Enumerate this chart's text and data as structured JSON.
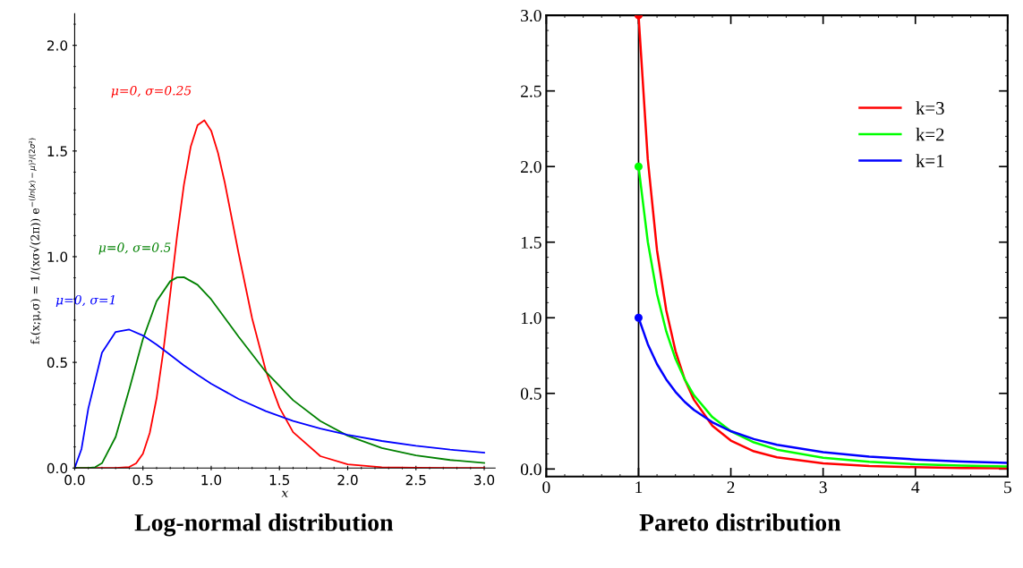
{
  "chart_data": [
    {
      "type": "line",
      "title": "Log-normal distribution",
      "xlabel": "x",
      "ylabel": "fₓ(x;μ,σ) = 1/(xσ√(2π)) e$^{−(ln(x)−μ)²/(2σ²)}$",
      "xlim": [
        0,
        3.08
      ],
      "ylim": [
        0,
        2.15
      ],
      "xticks": [
        {
          "value": 0,
          "label": "0.0"
        },
        0.5,
        {
          "value": 1,
          "label": "1.0"
        },
        1.5,
        {
          "value": 2,
          "label": "2.0"
        },
        2.5,
        {
          "value": 3,
          "label": "3.0"
        }
      ],
      "yticks": [
        {
          "value": 0,
          "label": "0.0"
        },
        0.5,
        {
          "value": 1,
          "label": "1.0"
        },
        1.5,
        {
          "value": 2,
          "label": "2.0"
        }
      ],
      "grid": false,
      "legend": false,
      "series": [
        {
          "name": "μ=0, σ=0.25",
          "color": "#ff0000",
          "x": [
            0,
            0.3,
            0.4,
            0.45,
            0.5,
            0.55,
            0.6,
            0.65,
            0.7,
            0.75,
            0.8,
            0.85,
            0.9,
            0.95,
            1.0,
            1.05,
            1.1,
            1.2,
            1.3,
            1.4,
            1.5,
            1.6,
            1.8,
            2.0,
            2.25,
            2.5,
            3.0
          ],
          "values": [
            0,
            0,
            0.005,
            0.022,
            0.068,
            0.166,
            0.33,
            0.556,
            0.824,
            1.098,
            1.339,
            1.52,
            1.622,
            1.645,
            1.596,
            1.491,
            1.349,
            1.019,
            0.708,
            0.461,
            0.286,
            0.17,
            0.056,
            0.017,
            0.004,
            0.001,
            0
          ]
        },
        {
          "name": "μ=0, σ=0.5",
          "color": "#008000",
          "x": [
            0,
            0.1,
            0.15,
            0.2,
            0.3,
            0.4,
            0.5,
            0.6,
            0.7,
            0.75,
            0.8,
            0.9,
            1.0,
            1.2,
            1.4,
            1.6,
            1.8,
            2.0,
            2.25,
            2.5,
            2.75,
            3.0
          ],
          "values": [
            0,
            0,
            0.004,
            0.023,
            0.147,
            0.372,
            0.61,
            0.789,
            0.884,
            0.902,
            0.903,
            0.867,
            0.798,
            0.622,
            0.455,
            0.321,
            0.222,
            0.153,
            0.095,
            0.06,
            0.038,
            0.024
          ]
        },
        {
          "name": "μ=0, σ=1",
          "color": "#0000ff",
          "x": [
            0,
            0.05,
            0.1,
            0.2,
            0.3,
            0.4,
            0.5,
            0.6,
            0.7,
            0.8,
            0.9,
            1.0,
            1.2,
            1.4,
            1.6,
            1.8,
            2.0,
            2.25,
            2.5,
            2.75,
            3.0
          ],
          "values": [
            0,
            0.09,
            0.282,
            0.546,
            0.644,
            0.655,
            0.627,
            0.584,
            0.535,
            0.486,
            0.441,
            0.399,
            0.327,
            0.269,
            0.223,
            0.187,
            0.157,
            0.128,
            0.105,
            0.087,
            0.073
          ]
        }
      ]
    },
    {
      "type": "line",
      "title": "Pareto distribution",
      "xlim": [
        0,
        5
      ],
      "ylim": [
        -0.05,
        3.0
      ],
      "xticks": [
        0,
        1,
        2,
        3,
        4,
        5
      ],
      "yticks": [
        {
          "value": 0,
          "label": "0.0"
        },
        0.5,
        {
          "value": 1,
          "label": "1.0"
        },
        1.5,
        {
          "value": 2,
          "label": "2.0"
        },
        2.5,
        {
          "value": 3,
          "label": "3.0"
        }
      ],
      "grid": false,
      "legend": "top right",
      "ref_lines": [
        {
          "axis": "x",
          "value": 1,
          "color": "#000000"
        }
      ],
      "series": [
        {
          "name": "k=3",
          "color": "#ff0000",
          "x": [
            1,
            1.1,
            1.2,
            1.3,
            1.4,
            1.5,
            1.6,
            1.8,
            2,
            2.25,
            2.5,
            3,
            3.5,
            4,
            4.5,
            5
          ],
          "values": [
            3,
            2.049,
            1.447,
            1.05,
            0.781,
            0.593,
            0.458,
            0.286,
            0.188,
            0.117,
            0.077,
            0.037,
            0.02,
            0.012,
            0.007,
            0.005
          ]
        },
        {
          "name": "k=2",
          "color": "#00ff00",
          "x": [
            1,
            1.1,
            1.2,
            1.3,
            1.4,
            1.5,
            1.6,
            1.8,
            2,
            2.25,
            2.5,
            3,
            3.5,
            4,
            4.5,
            5
          ],
          "values": [
            2,
            1.503,
            1.157,
            0.91,
            0.729,
            0.593,
            0.488,
            0.343,
            0.25,
            0.176,
            0.128,
            0.074,
            0.047,
            0.031,
            0.022,
            0.016
          ]
        },
        {
          "name": "k=1",
          "color": "#0000ff",
          "x": [
            1,
            1.1,
            1.2,
            1.3,
            1.4,
            1.5,
            1.6,
            1.8,
            2,
            2.25,
            2.5,
            3,
            3.5,
            4,
            4.5,
            5
          ],
          "values": [
            1,
            0.826,
            0.694,
            0.592,
            0.51,
            0.444,
            0.391,
            0.309,
            0.25,
            0.198,
            0.16,
            0.111,
            0.082,
            0.063,
            0.049,
            0.04
          ]
        },
        {
          "type": "scatter",
          "marker": "circle",
          "colors": [
            "#ff0000",
            "#00ff00",
            "#0000ff"
          ],
          "x": [
            1,
            1,
            1
          ],
          "values": [
            3,
            2,
            1
          ]
        }
      ]
    }
  ]
}
